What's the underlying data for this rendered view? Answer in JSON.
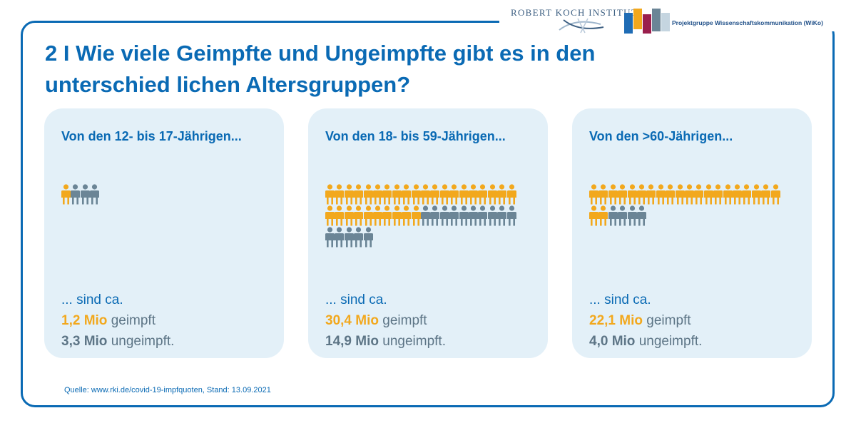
{
  "header": {
    "rki_logo_text": "ROBERT KOCH INSTITUT",
    "wiko_text": "Projektgruppe Wissenschaftskommunikation (WiKo)",
    "wiko_colors": [
      "#1f6cb5",
      "#f2a81d",
      "#9a1f4d",
      "#6b8596",
      "#c5d5e0"
    ]
  },
  "title": "2 I Wie viele Geimpfte und Ungeimpfte gibt es in den unterschied lichen Altersgruppen?",
  "colors": {
    "vaccinated": "#f2a81d",
    "unvaccinated": "#6b8596",
    "accent": "#0a6ab4",
    "panel": "#e3f0f8"
  },
  "chart_data": {
    "type": "pictogram",
    "icon": "person-icon",
    "icons_per_row": 20,
    "groups": [
      {
        "title": "Von den 12- bis 17-Jährigen...",
        "intro": "... sind ca.",
        "vaccinated_value": "1,2 Mio",
        "vaccinated_text": "geimpft",
        "unvaccinated_value": "3,3 Mio",
        "unvaccinated_text": "ungeimpft.",
        "vaccinated_icons": 1,
        "unvaccinated_icons": 3
      },
      {
        "title": "Von den 18- bis 59-Jährigen...",
        "intro": "... sind ca.",
        "vaccinated_value": "30,4 Mio",
        "vaccinated_text": "geimpft",
        "unvaccinated_value": "14,9 Mio",
        "unvaccinated_text": "ungeimpft.",
        "vaccinated_icons": 30,
        "unvaccinated_icons": 15
      },
      {
        "title": "Von den >60-Jährigen...",
        "intro": "... sind ca.",
        "vaccinated_value": "22,1 Mio",
        "vaccinated_text": "geimpft",
        "unvaccinated_value": "4,0 Mio",
        "unvaccinated_text": "ungeimpft.",
        "vaccinated_icons": 22,
        "unvaccinated_icons": 4
      }
    ]
  },
  "source": "Quelle: www.rki.de/covid-19-impfquoten, Stand: 13.09.2021"
}
